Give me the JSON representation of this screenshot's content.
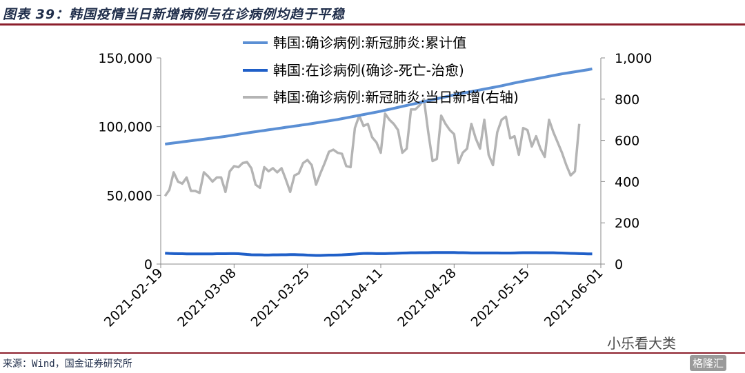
{
  "header": {
    "title": "图表 39：韩国疫情当日新增病例与在诊病例均趋于平稳"
  },
  "footer": {
    "source": "来源：Wind，国金证券研究所"
  },
  "watermark": {
    "text": "小乐看大类",
    "logo": "格隆汇"
  },
  "colors": {
    "cumulative": "#5b8fd4",
    "active": "#1f5fc8",
    "daily": "#b4b4b4",
    "axis": "#888888",
    "accent": "#8c1f2c"
  },
  "chart_data": {
    "type": "line",
    "title": "",
    "x_tick_labels": [
      "2021-02-19",
      "2021-03-08",
      "2021-03-25",
      "2021-04-11",
      "2021-04-28",
      "2021-05-15",
      "2021-06-01"
    ],
    "x_range_days": [
      0,
      102
    ],
    "y_left": {
      "ylim": [
        0,
        150000
      ],
      "tick_labels": [
        "0",
        "50,000",
        "100,000",
        "150,000"
      ],
      "ticks": [
        0,
        50000,
        100000,
        150000
      ]
    },
    "y_right": {
      "ylim": [
        0,
        1000
      ],
      "tick_labels": [
        "0",
        "200",
        "400",
        "600",
        "800",
        "1,000"
      ],
      "ticks": [
        0,
        200,
        400,
        600,
        800,
        1000
      ]
    },
    "legend_position": "top-center",
    "series": [
      {
        "name": "韩国:确诊病例:新冠肺炎:累计值",
        "axis": "left",
        "start": "2021-02-20",
        "values": [
          87300,
          87700,
          88100,
          88500,
          88900,
          89300,
          89700,
          90100,
          90500,
          90900,
          91300,
          91700,
          92100,
          92500,
          92900,
          93400,
          93900,
          94400,
          94900,
          95400,
          95900,
          96300,
          96800,
          97200,
          97700,
          98100,
          98600,
          99000,
          99500,
          99900,
          100400,
          100800,
          101300,
          101700,
          102200,
          102700,
          103200,
          103700,
          104200,
          104700,
          105200,
          105800,
          106400,
          107000,
          107600,
          108200,
          108800,
          109400,
          110000,
          110600,
          111200,
          111900,
          112600,
          113300,
          114000,
          114700,
          115400,
          116100,
          116800,
          117500,
          118200,
          118900,
          119600,
          120300,
          121000,
          121700,
          122400,
          123100,
          123700,
          124300,
          124900,
          125500,
          126100,
          126700,
          127300,
          127900,
          128500,
          129100,
          129700,
          130400,
          131100,
          131800,
          132400,
          133000,
          133600,
          134200,
          134800,
          135400,
          136000,
          136600,
          137200,
          137800,
          138400,
          138900,
          139400,
          139900,
          140400,
          140900,
          141400,
          142000
        ]
      },
      {
        "name": "韩国:在诊病例(确诊-死亡-治愈)",
        "axis": "left",
        "start": "2021-02-20",
        "values": [
          7900,
          7700,
          7600,
          7500,
          7500,
          7400,
          7400,
          7400,
          7400,
          7400,
          7400,
          7400,
          7500,
          7500,
          7500,
          7600,
          7600,
          7500,
          7300,
          7000,
          6800,
          6700,
          6700,
          6600,
          6600,
          6700,
          6700,
          6800,
          6800,
          6900,
          6900,
          6800,
          6700,
          6500,
          6400,
          6300,
          6300,
          6400,
          6500,
          6500,
          6600,
          6700,
          6900,
          7100,
          7300,
          7500,
          7700,
          7800,
          7700,
          7600,
          7600,
          7600,
          7700,
          7800,
          7900,
          8000,
          8100,
          8200,
          8200,
          8300,
          8300,
          8300,
          8400,
          8400,
          8400,
          8400,
          8400,
          8400,
          8300,
          8300,
          8200,
          8100,
          8100,
          8100,
          8100,
          8100,
          8100,
          8100,
          8000,
          8000,
          8000,
          8100,
          8200,
          8300,
          8300,
          8300,
          8300,
          8200,
          8200,
          8200,
          8200,
          8100,
          8000,
          7900,
          7800,
          7700,
          7600,
          7500,
          7400,
          7400
        ]
      },
      {
        "name": "韩国:确诊病例:新冠肺炎:当日新增(右轴)",
        "axis": "right",
        "start": "2021-02-20",
        "values": [
          330,
          360,
          445,
          400,
          390,
          420,
          355,
          355,
          345,
          445,
          425,
          400,
          420,
          420,
          350,
          450,
          475,
          470,
          490,
          495,
          465,
          385,
          370,
          470,
          450,
          465,
          445,
          465,
          410,
          350,
          430,
          440,
          490,
          505,
          480,
          385,
          440,
          490,
          545,
          555,
          540,
          535,
          475,
          470,
          660,
          720,
          670,
          680,
          615,
          590,
          540,
          730,
          700,
          680,
          650,
          540,
          560,
          750,
          750,
          770,
          800,
          640,
          500,
          510,
          720,
          680,
          650,
          630,
          490,
          540,
          560,
          680,
          610,
          560,
          700,
          530,
          480,
          640,
          700,
          715,
          610,
          620,
          530,
          660,
          650,
          570,
          620,
          560,
          520,
          700,
          640,
          590,
          540,
          480,
          430,
          450,
          680
        ]
      }
    ]
  }
}
